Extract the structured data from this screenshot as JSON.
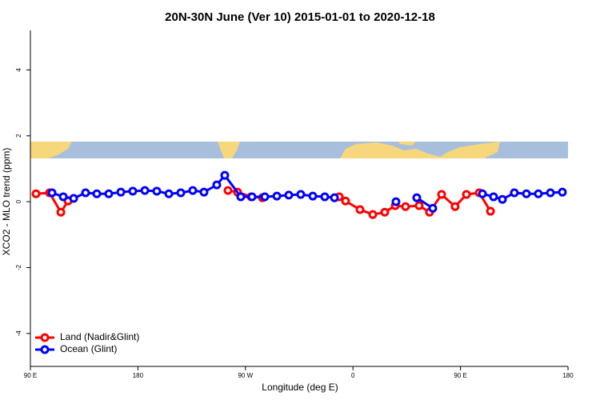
{
  "chart_data": {
    "type": "line",
    "title": "20N-30N June (Ver 10)   2015-01-01 to 2020-12-18",
    "x_label": "Longitude (deg E)",
    "y_label": "XCO2 - MLO trend (ppm)",
    "xlim": [
      90,
      540
    ],
    "xticks": [
      {
        "value": 90,
        "label": "90 E"
      },
      180,
      {
        "value": 270,
        "label": "90 W"
      },
      {
        "value": 360,
        "label": "0"
      },
      {
        "value": 450,
        "label": "90 E"
      },
      {
        "value": 540,
        "label": "180"
      }
    ],
    "ylim": [
      -5,
      5.2
    ],
    "yticks": [
      4,
      2,
      0,
      -2,
      -4
    ],
    "legend": "bottom-left",
    "series": [
      {
        "name": "Land (Nadir&Glint)",
        "color": "#ff0000",
        "x": [
          94.7,
          106,
          115.5,
          121.5,
          null,
          255.4,
          263.4,
          274.8,
          284.2,
          null,
          348.5,
          353.8,
          365.9,
          376.6,
          386.6,
          395.4,
          404,
          415.4,
          424.1,
          434.2,
          445.5,
          455,
          465.7,
          475.1
        ],
        "values": [
          0.24,
          0.27,
          -0.32,
          0.02,
          null,
          0.34,
          0.29,
          0.15,
          0.12,
          null,
          0.15,
          0.02,
          -0.24,
          -0.39,
          -0.32,
          -0.12,
          -0.15,
          -0.12,
          -0.32,
          0.22,
          -0.15,
          0.22,
          0.27,
          -0.29
        ]
      },
      {
        "name": "Ocean (Glint)",
        "color": "#0000ff",
        "x": [
          108.1,
          117.5,
          126.2,
          136.2,
          145.6,
          155.6,
          165.7,
          175.7,
          185.8,
          195.8,
          205.9,
          215.9,
          225.9,
          235.3,
          246,
          252.7,
          266.1,
          275.5,
          286.2,
          296.3,
          306.3,
          316.3,
          326.4,
          336.4,
          344.5,
          null,
          396,
          null,
          413.4,
          426.8,
          null,
          468.4,
          477.7,
          485.1,
          495.1,
          505.2,
          515.2,
          525.3,
          535.3
        ],
        "values": [
          0.27,
          0.15,
          0.1,
          0.27,
          0.24,
          0.24,
          0.29,
          0.32,
          0.34,
          0.32,
          0.24,
          0.27,
          0.34,
          0.29,
          0.51,
          0.8,
          0.15,
          0.15,
          0.15,
          0.17,
          0.2,
          0.22,
          0.17,
          0.15,
          0.12,
          null,
          0,
          null,
          0.12,
          -0.2,
          null,
          0.24,
          0.15,
          0.07,
          0.27,
          0.24,
          0.24,
          0.27,
          0.29
        ]
      }
    ]
  }
}
